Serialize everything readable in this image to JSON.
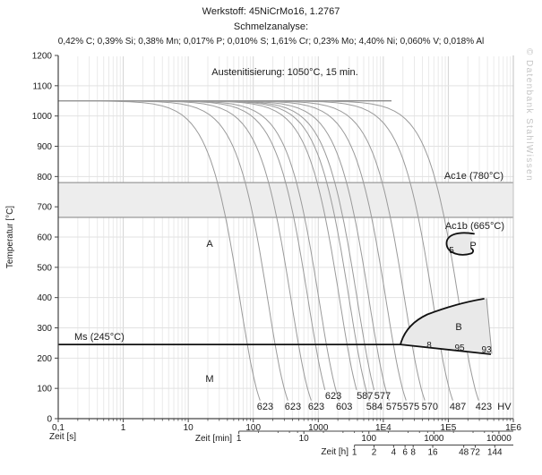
{
  "header": {
    "line1": "Werkstoff: 45NiCrMo16, 1.2767",
    "line2": "Schmelzanalyse:",
    "line3": "0,42% C; 0,39% Si; 0,38% Mn; 0,017% P; 0,010% S; 1,61% Cr; 0,23% Mo; 4,40% Ni; 0,060% V; 0,018% Al"
  },
  "watermark": "© Datenbank StahlWissen",
  "chart_data": {
    "type": "line",
    "title": "Werkstoff: 45NiCrMo16, 1.2767",
    "subtitle": "Schmelzanalyse",
    "austenitization": "Austenitisierung: 1050°C, 15 min.",
    "ylabel": "Temperatur [°C]",
    "ylim": [
      0,
      1200
    ],
    "y_tick_step": 100,
    "x_log_range_s": [
      0.1,
      1000000
    ],
    "grid": "on",
    "austenitize_temp_c": 1050,
    "axes": {
      "seconds": {
        "label": "Zeit [s]",
        "ticks": [
          {
            "v": 0.1,
            "label": "0,1"
          },
          {
            "v": 1,
            "label": "1"
          },
          {
            "v": 10,
            "label": "10"
          },
          {
            "v": 100,
            "label": "100"
          },
          {
            "v": 1000,
            "label": "1000"
          },
          {
            "v": 10000,
            "label": "1E4"
          },
          {
            "v": 100000,
            "label": "1E5"
          },
          {
            "v": 1000000,
            "label": "1E6"
          }
        ]
      },
      "minutes": {
        "label": "Zeit [min]",
        "ticks": [
          {
            "v": 1,
            "label": "1"
          },
          {
            "v": 10,
            "label": "10"
          },
          {
            "v": 100,
            "label": "100"
          },
          {
            "v": 1000,
            "label": "1000"
          },
          {
            "v": 10000,
            "label": "10000"
          }
        ]
      },
      "hours": {
        "label": "Zeit [h]",
        "ticks": [
          {
            "v": 1,
            "label": "1"
          },
          {
            "v": 2,
            "label": "2"
          },
          {
            "v": 4,
            "label": "4"
          },
          {
            "v": 6,
            "label": "6"
          },
          {
            "v": 8,
            "label": "8"
          },
          {
            "v": 16,
            "label": "16"
          },
          {
            "v": 48,
            "label": "48"
          },
          {
            "v": 72,
            "label": "72"
          },
          {
            "v": 144,
            "label": "144"
          }
        ]
      }
    },
    "reference_lines": {
      "ac1e": {
        "label": "Ac1e (780°C)",
        "temp_c": 780
      },
      "ac1b": {
        "label": "Ac1b (665°C)",
        "temp_c": 665
      },
      "ms": {
        "label": "Ms (245°C)",
        "temp_c": 245
      }
    },
    "phase_labels": {
      "austenite": "A",
      "martensite": "M",
      "bainite": "B",
      "pearlite": "P"
    },
    "phase_fractions": {
      "pearlite": "5",
      "bainite": [
        "8",
        "95",
        "93"
      ]
    },
    "hardness_unit": "HV",
    "cooling_curves": [
      {
        "hv": "623",
        "t_s": 152,
        "row": "bottom"
      },
      {
        "hv": "623",
        "t_s": 407,
        "row": "bottom"
      },
      {
        "hv": "623",
        "t_s": 930,
        "row": "bottom"
      },
      {
        "hv": "623",
        "t_s": 1700,
        "row": "top"
      },
      {
        "hv": "603",
        "t_s": 2500,
        "row": "bottom"
      },
      {
        "hv": "587",
        "t_s": 5200,
        "row": "top"
      },
      {
        "hv": "584",
        "t_s": 7300,
        "row": "bottom"
      },
      {
        "hv": "577",
        "t_s": 9700,
        "row": "top"
      },
      {
        "hv": "575",
        "t_s": 14700,
        "row": "bottom"
      },
      {
        "hv": "575",
        "t_s": 26800,
        "row": "bottom"
      },
      {
        "hv": "570",
        "t_s": 52000,
        "row": "bottom"
      },
      {
        "hv": "487",
        "t_s": 140000,
        "row": "bottom"
      },
      {
        "hv": "423",
        "t_s": 350000,
        "row": "bottom"
      }
    ],
    "colors": {
      "curve": "#9a9a9a",
      "grid_minor": "#eaeaea",
      "grid_major": "#d4d4d4",
      "band_fill": "#ededed",
      "band_line": "#999999",
      "region_fill": "#e9e9e9",
      "boundary": "#111111",
      "axis": "#444444",
      "watermark": "#c5c5c5"
    }
  }
}
